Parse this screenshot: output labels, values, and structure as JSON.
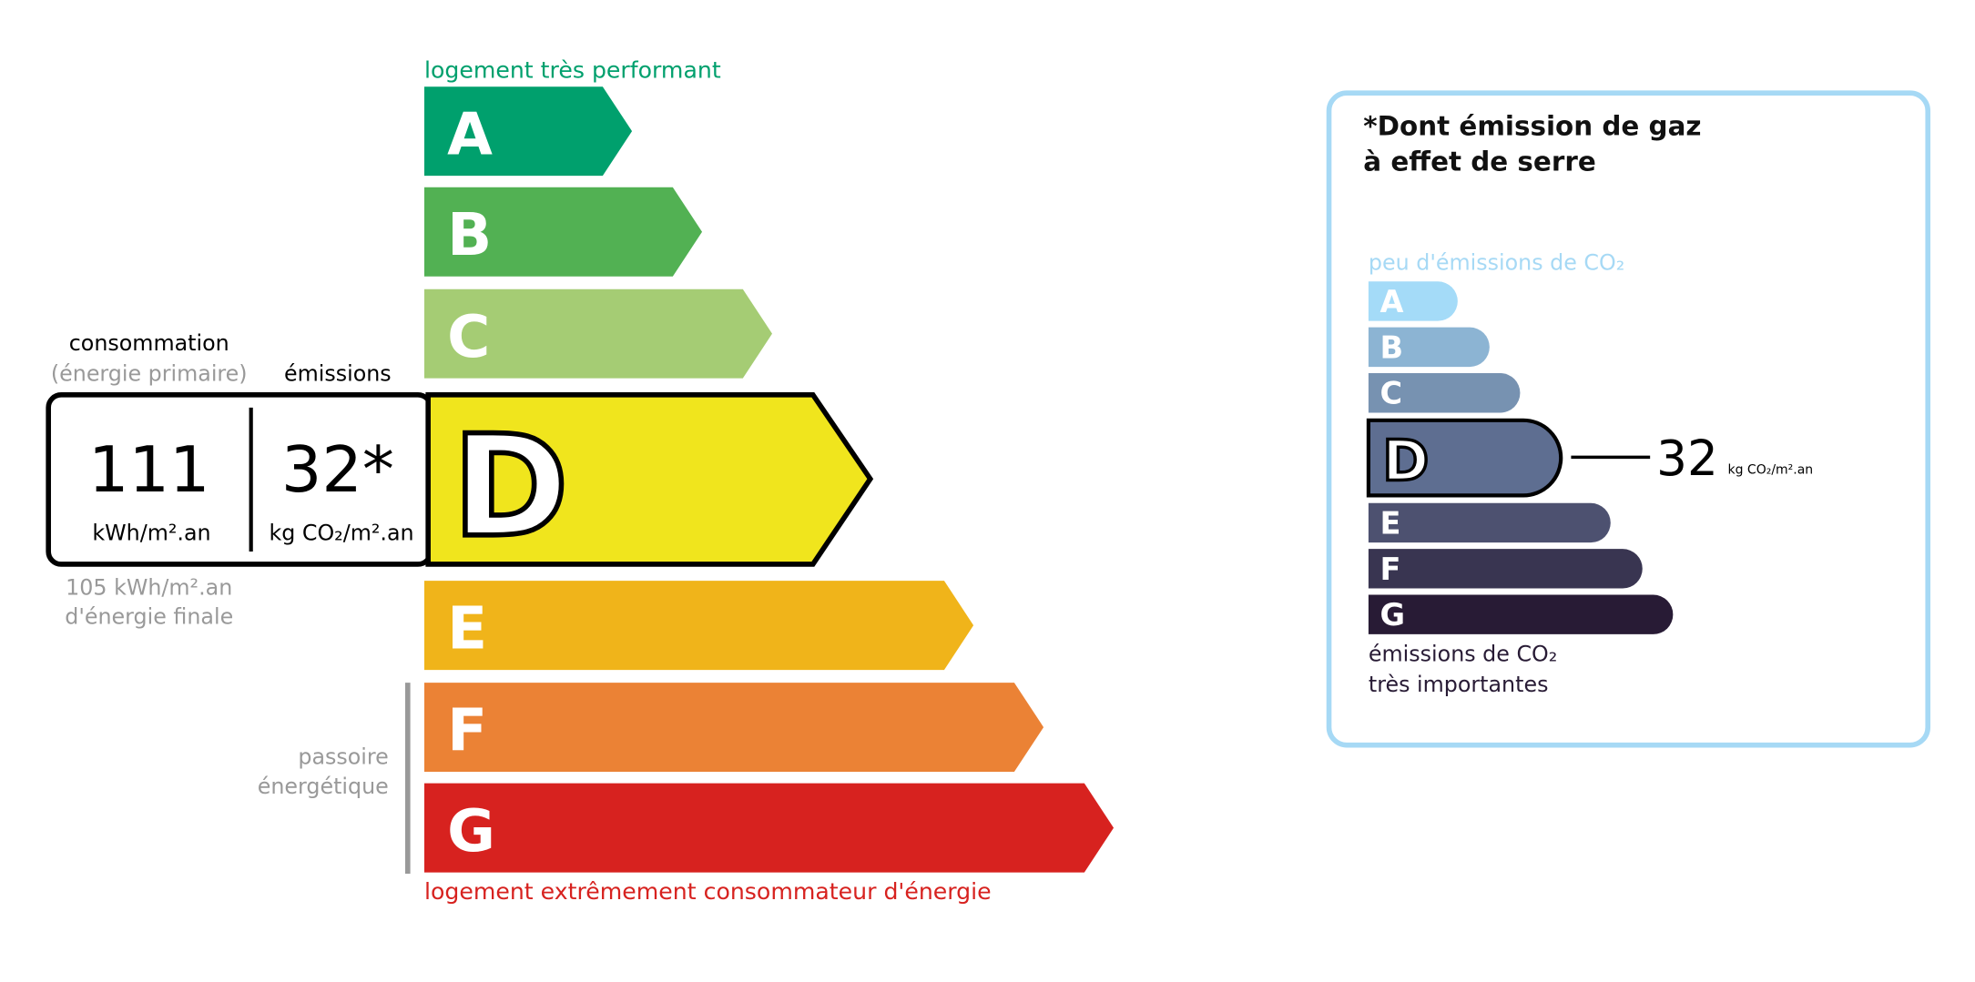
{
  "energy_label": {
    "top_caption": "logement très performant",
    "bottom_caption": "logement extrêmement consommateur d'énergie",
    "classes": [
      {
        "letter": "A",
        "color": "#00a06d"
      },
      {
        "letter": "B",
        "color": "#52b153"
      },
      {
        "letter": "C",
        "color": "#a5cc74"
      },
      {
        "letter": "D",
        "color": "#f0e51d"
      },
      {
        "letter": "E",
        "color": "#f0b41a"
      },
      {
        "letter": "F",
        "color": "#eb8235"
      },
      {
        "letter": "G",
        "color": "#d7221f"
      }
    ],
    "current_class": "D",
    "consumption_label": "consommation",
    "consumption_sublabel": "(énergie primaire)",
    "emissions_label": "émissions",
    "consumption_value": "111",
    "consumption_unit": "kWh/m².an",
    "emissions_value": "32*",
    "emissions_unit": "kg CO₂/m².an",
    "final_energy_value": "105 kWh/m².an",
    "final_energy_label": "d'énergie finale",
    "passoire_line1": "passoire",
    "passoire_line2": "énergétique"
  },
  "ghg_label": {
    "title_line1": "*Dont émission de gaz",
    "title_line2": "à effet de serre",
    "top_caption": "peu d'émissions de CO₂",
    "bottom_caption_line1": "émissions de CO₂",
    "bottom_caption_line2": "très importantes",
    "classes": [
      {
        "letter": "A",
        "color": "#a4dbf8"
      },
      {
        "letter": "B",
        "color": "#8cb4d3"
      },
      {
        "letter": "C",
        "color": "#7792b1"
      },
      {
        "letter": "D",
        "color": "#5e6e91"
      },
      {
        "letter": "E",
        "color": "#4d5170"
      },
      {
        "letter": "F",
        "color": "#393551"
      },
      {
        "letter": "G",
        "color": "#281b35"
      }
    ],
    "current_class": "D",
    "value": "32",
    "unit": "kg CO₂/m².an",
    "border_color": "#a6d9f5"
  }
}
